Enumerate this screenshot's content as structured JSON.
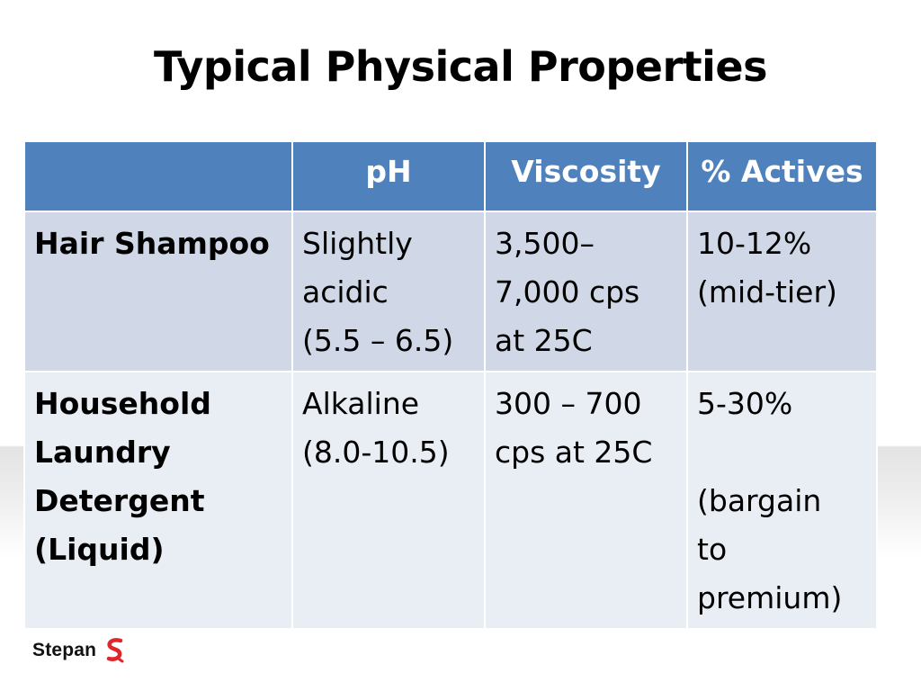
{
  "title": "Typical Physical Properties",
  "table": {
    "headers": [
      "",
      "pH",
      "Viscosity",
      "% Actives"
    ],
    "rows": [
      {
        "label": [
          "Hair Shampoo"
        ],
        "ph": [
          "Slightly",
          "acidic",
          "(5.5 – 6.5)"
        ],
        "viscosity": [
          "3,500–",
          "7,000 cps",
          "at 25C"
        ],
        "actives": [
          "10-12%",
          "(mid-tier)"
        ]
      },
      {
        "label": [
          "Household",
          "Laundry",
          "Detergent",
          "(Liquid)"
        ],
        "ph": [
          "Alkaline",
          "(8.0-10.5)"
        ],
        "viscosity": [
          "300 – 700",
          "cps at 25C"
        ],
        "actives": [
          "5-30%",
          "(bargain",
          "to",
          "premium)"
        ]
      }
    ]
  },
  "logo": {
    "text": "Stepan",
    "icon": "stepan-logo-icon",
    "color": "#e0262b"
  },
  "colors": {
    "header_bg": "#4f81bd",
    "row1_bg": "#d0d8e8",
    "row2_bg": "#e9edf4"
  }
}
